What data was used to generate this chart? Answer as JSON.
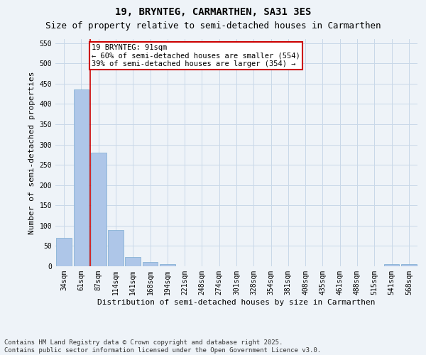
{
  "title": "19, BRYNTEG, CARMARTHEN, SA31 3ES",
  "subtitle": "Size of property relative to semi-detached houses in Carmarthen",
  "xlabel": "Distribution of semi-detached houses by size in Carmarthen",
  "ylabel": "Number of semi-detached properties",
  "categories": [
    "34sqm",
    "61sqm",
    "87sqm",
    "114sqm",
    "141sqm",
    "168sqm",
    "194sqm",
    "221sqm",
    "248sqm",
    "274sqm",
    "301sqm",
    "328sqm",
    "354sqm",
    "381sqm",
    "408sqm",
    "435sqm",
    "461sqm",
    "488sqm",
    "515sqm",
    "541sqm",
    "568sqm"
  ],
  "values": [
    70,
    435,
    280,
    90,
    22,
    10,
    5,
    0,
    0,
    0,
    0,
    0,
    0,
    0,
    0,
    0,
    0,
    0,
    0,
    5,
    5
  ],
  "bar_color": "#aec6e8",
  "bar_edge_color": "#7aaad0",
  "grid_color": "#c8d8e8",
  "background_color": "#eef3f8",
  "vline_x_index": 2,
  "vline_color": "#cc0000",
  "annotation_line1": "19 BRYNTEG: 91sqm",
  "annotation_line2": "← 60% of semi-detached houses are smaller (554)",
  "annotation_line3": "39% of semi-detached houses are larger (354) →",
  "annotation_box_color": "#ffffff",
  "annotation_box_edge_color": "#cc0000",
  "ylim": [
    0,
    560
  ],
  "yticks": [
    0,
    50,
    100,
    150,
    200,
    250,
    300,
    350,
    400,
    450,
    500,
    550
  ],
  "footer": "Contains HM Land Registry data © Crown copyright and database right 2025.\nContains public sector information licensed under the Open Government Licence v3.0.",
  "title_fontsize": 10,
  "subtitle_fontsize": 9,
  "axis_label_fontsize": 8,
  "tick_fontsize": 7,
  "annotation_fontsize": 7.5,
  "footer_fontsize": 6.5
}
